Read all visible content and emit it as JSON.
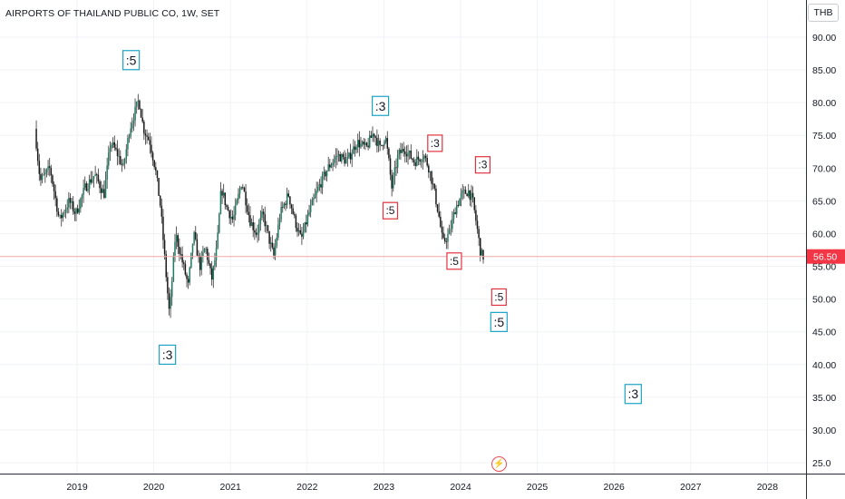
{
  "header": {
    "title": "AIRPORTS OF THAILAND PUBLIC CO, 1W, SET",
    "currency": "THB"
  },
  "price_tag": {
    "value": "56.50"
  },
  "flash_icon": "lightning-icon",
  "colors": {
    "up": "#1e7a60",
    "down": "#1a1a1a",
    "wick": "#333333",
    "price_line": "#f4a7a7",
    "price_tag": "#f23645",
    "cyan_label": "#1ba3c6",
    "red_label": "#e0333f"
  },
  "chart_data": {
    "type": "candlestick",
    "title": "AIRPORTS OF THAILAND PUBLIC CO, 1W, SET",
    "ylim": [
      22.5,
      95
    ],
    "y_ticks": [
      "25.0",
      "30.00",
      "35.00",
      "40.00",
      "45.00",
      "50.00",
      "55.00",
      "60.00",
      "65.00",
      "70.00",
      "75.00",
      "80.00",
      "85.00",
      "90.00"
    ],
    "x_ticks": [
      "2019",
      "2020",
      "2021",
      "2022",
      "2023",
      "2024",
      "2025",
      "2026",
      "2027",
      "2028"
    ],
    "last_price": 56.5,
    "price_path": [
      [
        "2018-06-20",
        76
      ],
      [
        "2018-07-15",
        68
      ],
      [
        "2018-09-01",
        70
      ],
      [
        "2018-10-15",
        62
      ],
      [
        "2018-12-01",
        65
      ],
      [
        "2019-01-01",
        63
      ],
      [
        "2019-02-15",
        67
      ],
      [
        "2019-04-01",
        69
      ],
      [
        "2019-05-15",
        66
      ],
      [
        "2019-06-15",
        74
      ],
      [
        "2019-07-20",
        72
      ],
      [
        "2019-08-15",
        70
      ],
      [
        "2019-09-15",
        76
      ],
      [
        "2019-10-28",
        80.5
      ],
      [
        "2019-11-20",
        76
      ],
      [
        "2019-12-20",
        74
      ],
      [
        "2020-01-15",
        70
      ],
      [
        "2020-02-10",
        64
      ],
      [
        "2020-03-10",
        52
      ],
      [
        "2020-03-22",
        47.5
      ],
      [
        "2020-04-20",
        60
      ],
      [
        "2020-05-20",
        56
      ],
      [
        "2020-06-20",
        52
      ],
      [
        "2020-07-15",
        60
      ],
      [
        "2020-08-15",
        55
      ],
      [
        "2020-09-10",
        58
      ],
      [
        "2020-10-10",
        53
      ],
      [
        "2020-11-05",
        58
      ],
      [
        "2020-11-25",
        67
      ],
      [
        "2020-12-20",
        64
      ],
      [
        "2021-01-20",
        62
      ],
      [
        "2021-03-01",
        68
      ],
      [
        "2021-04-10",
        62
      ],
      [
        "2021-05-10",
        60
      ],
      [
        "2021-06-10",
        63
      ],
      [
        "2021-07-10",
        59
      ],
      [
        "2021-08-01",
        56.5
      ],
      [
        "2021-09-01",
        63
      ],
      [
        "2021-10-10",
        66
      ],
      [
        "2021-11-10",
        62
      ],
      [
        "2021-12-10",
        59
      ],
      [
        "2022-01-15",
        63
      ],
      [
        "2022-03-01",
        67
      ],
      [
        "2022-04-15",
        70
      ],
      [
        "2022-06-01",
        72
      ],
      [
        "2022-07-15",
        71
      ],
      [
        "2022-09-01",
        74
      ],
      [
        "2022-10-15",
        73
      ],
      [
        "2022-11-20",
        75.5
      ],
      [
        "2022-12-20",
        73
      ],
      [
        "2023-01-15",
        75
      ],
      [
        "2023-02-01",
        71
      ],
      [
        "2023-02-15",
        67
      ],
      [
        "2023-03-15",
        72
      ],
      [
        "2023-04-15",
        73
      ],
      [
        "2023-06-01",
        71
      ],
      [
        "2023-07-15",
        72
      ],
      [
        "2023-08-10",
        70
      ],
      [
        "2023-09-01",
        67
      ],
      [
        "2023-09-25",
        63
      ],
      [
        "2023-10-15",
        58.5
      ],
      [
        "2023-11-15",
        60
      ],
      [
        "2023-12-15",
        64
      ],
      [
        "2024-01-15",
        66
      ],
      [
        "2024-02-15",
        66.5
      ],
      [
        "2024-03-05",
        65
      ],
      [
        "2024-03-25",
        61
      ],
      [
        "2024-04-10",
        57.5
      ],
      [
        "2024-04-20",
        56.5
      ]
    ],
    "wave_labels": [
      {
        "text": ":5",
        "date": "2019-09-15",
        "price": 86.5,
        "color": "cyan"
      },
      {
        "text": ":3",
        "date": "2020-03-05",
        "price": 41.5,
        "color": "cyan"
      },
      {
        "text": ":3",
        "date": "2022-12-15",
        "price": 79.5,
        "color": "cyan"
      },
      {
        "text": ":5",
        "date": "2023-02-01",
        "price": 63.5,
        "color": "red"
      },
      {
        "text": ":3",
        "date": "2023-09-01",
        "price": 73.8,
        "color": "red"
      },
      {
        "text": ":5",
        "date": "2023-12-01",
        "price": 55.8,
        "color": "red"
      },
      {
        "text": ":3",
        "date": "2024-04-15",
        "price": 70.5,
        "color": "red"
      },
      {
        "text": ":5",
        "date": "2024-07-01",
        "price": 50.3,
        "color": "red"
      },
      {
        "text": ":5",
        "date": "2024-07-01",
        "price": 46.5,
        "color": "cyan"
      },
      {
        "text": ":3",
        "date": "2026-04-01",
        "price": 35.5,
        "color": "cyan"
      }
    ]
  }
}
